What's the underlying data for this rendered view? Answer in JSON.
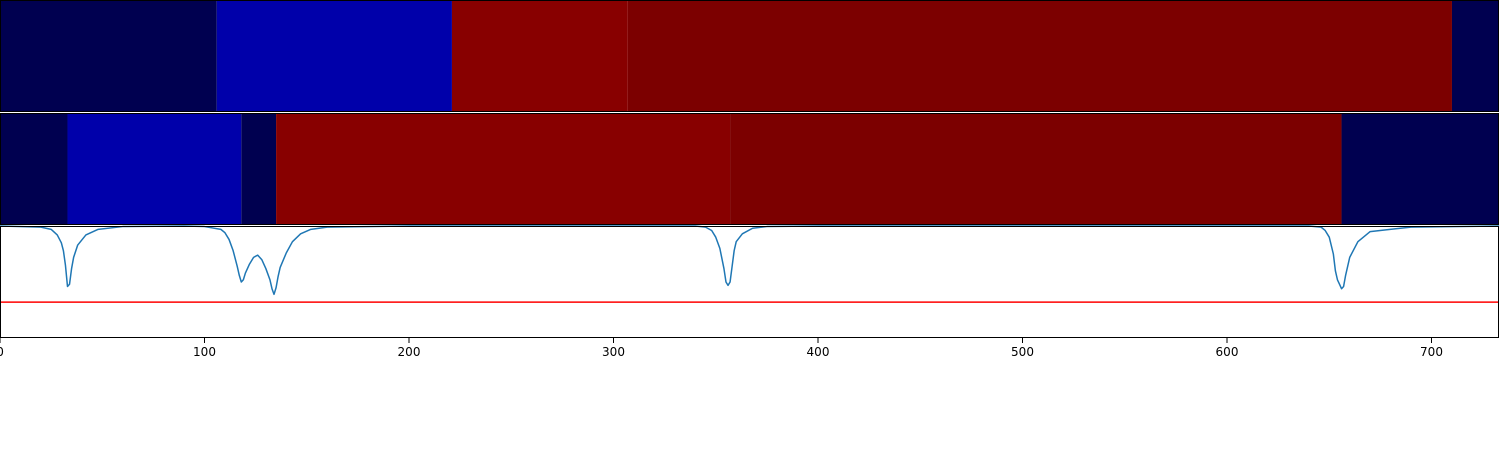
{
  "chart_data": [
    {
      "type": "heatmap",
      "segments": [
        {
          "start": 0,
          "end": 106,
          "color": "#000050"
        },
        {
          "start": 106,
          "end": 221,
          "color": "#0000AA"
        },
        {
          "start": 221,
          "end": 307,
          "color": "#880000"
        },
        {
          "start": 307,
          "end": 710,
          "color": "#7C0000"
        },
        {
          "start": 710,
          "end": 733,
          "color": "#000050"
        }
      ]
    },
    {
      "type": "heatmap",
      "segments": [
        {
          "start": 0,
          "end": 33,
          "color": "#000050"
        },
        {
          "start": 33,
          "end": 118,
          "color": "#0000AA"
        },
        {
          "start": 118,
          "end": 135,
          "color": "#000050"
        },
        {
          "start": 135,
          "end": 357,
          "color": "#880000"
        },
        {
          "start": 357,
          "end": 656,
          "color": "#7C0000"
        },
        {
          "start": 656,
          "end": 733,
          "color": "#000050"
        }
      ]
    },
    {
      "type": "line",
      "xlim": [
        0,
        733
      ],
      "ylim": [
        0,
        1
      ],
      "xticks": [
        0,
        100,
        200,
        300,
        400,
        500,
        600,
        700
      ],
      "series": [
        {
          "color": "#1f77b4",
          "x": [
            0,
            20,
            25,
            28,
            30,
            31,
            32,
            33,
            34,
            35,
            36,
            38,
            42,
            48,
            60,
            90,
            100,
            108,
            110,
            112,
            114,
            116,
            117,
            118,
            119,
            120,
            122,
            124,
            126,
            128,
            130,
            132,
            133,
            134,
            135,
            136,
            137,
            140,
            143,
            147,
            152,
            160,
            200,
            340,
            345,
            348,
            350,
            352,
            354,
            355,
            356,
            357,
            358,
            359,
            360,
            363,
            368,
            375,
            400,
            640,
            646,
            648,
            650,
            652,
            653,
            654,
            655,
            656,
            657,
            658,
            660,
            664,
            670,
            690,
            733
          ],
          "y": [
            1.0,
            0.99,
            0.97,
            0.92,
            0.85,
            0.78,
            0.65,
            0.46,
            0.48,
            0.62,
            0.72,
            0.83,
            0.92,
            0.97,
            0.995,
            1.0,
            0.995,
            0.97,
            0.94,
            0.88,
            0.78,
            0.64,
            0.56,
            0.5,
            0.52,
            0.58,
            0.66,
            0.72,
            0.74,
            0.7,
            0.62,
            0.52,
            0.44,
            0.39,
            0.45,
            0.55,
            0.63,
            0.76,
            0.86,
            0.93,
            0.97,
            0.99,
            1.0,
            1.0,
            0.99,
            0.96,
            0.9,
            0.8,
            0.62,
            0.5,
            0.47,
            0.5,
            0.64,
            0.78,
            0.86,
            0.93,
            0.98,
            0.995,
            1.0,
            1.0,
            0.99,
            0.96,
            0.9,
            0.75,
            0.6,
            0.52,
            0.48,
            0.44,
            0.46,
            0.56,
            0.72,
            0.86,
            0.95,
            0.99,
            1.0
          ]
        },
        {
          "color": "#ff0000",
          "x": [
            0,
            733
          ],
          "y": [
            0.32,
            0.32
          ]
        }
      ]
    }
  ]
}
